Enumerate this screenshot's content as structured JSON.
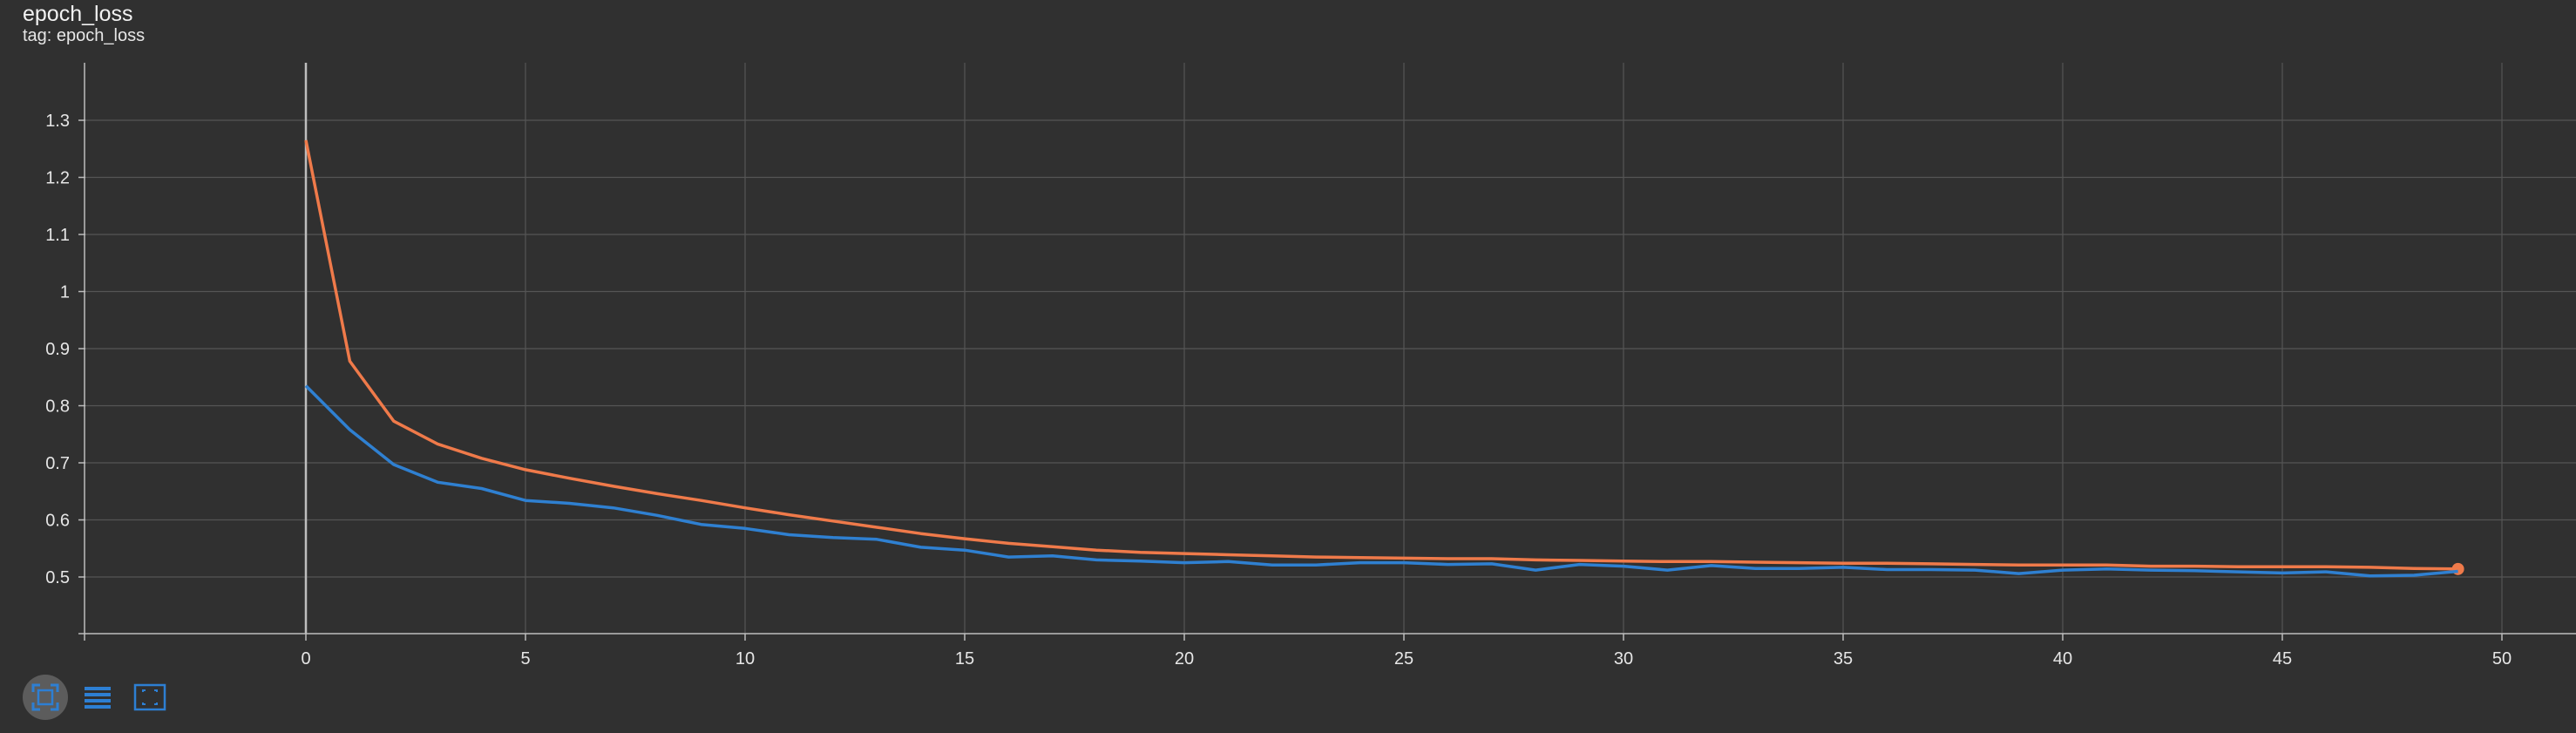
{
  "header": {
    "title": "epoch_loss",
    "tag_prefix": "tag: ",
    "tag_value": "epoch_loss"
  },
  "toolbar": {
    "icons": [
      "fit-domain-icon",
      "legend-list-icon",
      "zoom-selection-icon"
    ],
    "accent": "#2d7fd3"
  },
  "chart_data": {
    "type": "line",
    "title": "",
    "xlabel": "",
    "ylabel": "",
    "xlim": [
      -5,
      52
    ],
    "ylim": [
      0.4,
      1.4
    ],
    "x_ticks": [
      0,
      5,
      10,
      15,
      20,
      25,
      30,
      35,
      40,
      45,
      50
    ],
    "y_ticks": [
      0.5,
      0.6,
      0.7,
      0.8,
      0.9,
      1,
      1.1,
      1.2,
      1.3
    ],
    "grid": true,
    "legend": "none",
    "series": [
      {
        "color": "#ef7a4a",
        "x": [
          0,
          1,
          2,
          3,
          4,
          5,
          6,
          7,
          8,
          9,
          10,
          11,
          12,
          13,
          14,
          15,
          16,
          17,
          18,
          19,
          20,
          21,
          22,
          23,
          24,
          25,
          26,
          27,
          28,
          29,
          30,
          31,
          32,
          33,
          34,
          35,
          36,
          37,
          38,
          39,
          40,
          41,
          42,
          43,
          44,
          45,
          46,
          47,
          48,
          49
        ],
        "values": [
          1.265,
          0.878,
          0.773,
          0.733,
          0.708,
          0.688,
          0.673,
          0.659,
          0.646,
          0.634,
          0.621,
          0.609,
          0.598,
          0.587,
          0.576,
          0.567,
          0.559,
          0.553,
          0.547,
          0.543,
          0.541,
          0.539,
          0.537,
          0.535,
          0.534,
          0.533,
          0.532,
          0.532,
          0.53,
          0.529,
          0.528,
          0.527,
          0.527,
          0.526,
          0.525,
          0.524,
          0.524,
          0.523,
          0.522,
          0.521,
          0.521,
          0.521,
          0.519,
          0.519,
          0.518,
          0.518,
          0.518,
          0.517,
          0.515,
          0.514
        ],
        "end_marker": true
      },
      {
        "color": "#2f80d1",
        "x": [
          0,
          1,
          2,
          3,
          4,
          5,
          6,
          7,
          8,
          9,
          10,
          11,
          12,
          13,
          14,
          15,
          16,
          17,
          18,
          19,
          20,
          21,
          22,
          23,
          24,
          25,
          26,
          27,
          28,
          29,
          30,
          31,
          32,
          33,
          34,
          35,
          36,
          37,
          38,
          39,
          40,
          41,
          42,
          43,
          44,
          45,
          46,
          47,
          48,
          49
        ],
        "values": [
          0.835,
          0.758,
          0.697,
          0.666,
          0.655,
          0.634,
          0.629,
          0.621,
          0.608,
          0.592,
          0.585,
          0.574,
          0.569,
          0.566,
          0.552,
          0.547,
          0.535,
          0.537,
          0.53,
          0.528,
          0.525,
          0.527,
          0.521,
          0.521,
          0.525,
          0.525,
          0.522,
          0.523,
          0.512,
          0.522,
          0.519,
          0.512,
          0.52,
          0.515,
          0.515,
          0.517,
          0.513,
          0.513,
          0.512,
          0.506,
          0.512,
          0.514,
          0.512,
          0.511,
          0.509,
          0.507,
          0.509,
          0.502,
          0.503,
          0.51
        ],
        "end_marker": false
      }
    ]
  }
}
